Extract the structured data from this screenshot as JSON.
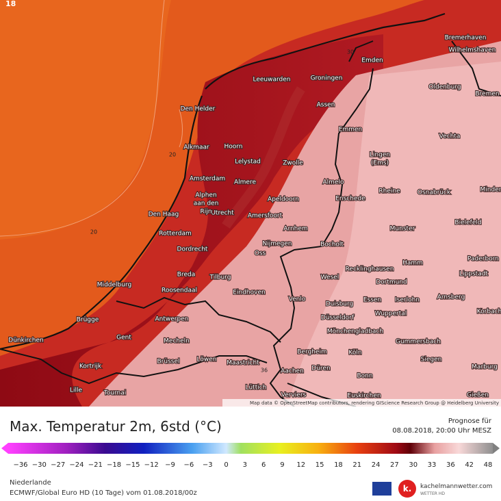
{
  "map": {
    "corner_label": "18",
    "cities": [
      "Bremerhaven",
      "Wilhelmshaven",
      "Emden",
      "Leeuwarden",
      "Groningen",
      "Oldenburg",
      "Bremen",
      "Den Helder",
      "Assen",
      "Emmen",
      "Vechta",
      "Alkmaar",
      "Hoorn",
      "Lelystad",
      "Zwolle",
      "Amsterdam",
      "Almere",
      "Almelo",
      "Rheine",
      "Osnabrück",
      "Minden",
      "Apeldoorn",
      "Enschede",
      "Den Haag",
      "Utrecht",
      "Amersfoort",
      "Bielefeld",
      "Arnhem",
      "Munster",
      "Rotterdam",
      "Nijmegen",
      "Bocholt",
      "Dordrecht",
      "Oss",
      "Hamm",
      "Paderborn",
      "Recklinghausen",
      "Lippstadt",
      "Breda",
      "Tilburg",
      "Wesel",
      "Dortmund",
      "Middelburg",
      "Roosendaal",
      "Arnsberg",
      "Eindhoven",
      "Venlo",
      "Essen",
      "Iserlohn",
      "Duisburg",
      "Korbach",
      "Wuppertal",
      "Düsseldorf",
      "Brügge",
      "Antwerpen",
      "Mönchengladbach",
      "Dünkirchen",
      "Gent",
      "Mecheln",
      "Gummersbach",
      "Bergheim",
      "Köln",
      "Kortrijk",
      "Brüssel",
      "Löwen",
      "Maastricht",
      "Siegen",
      "Düren",
      "Aachen",
      "Marburg",
      "Bonn",
      "Lille",
      "Tournai",
      "Lüttich",
      "Verviers",
      "Euskirchen",
      "Gießen"
    ],
    "multiline_cities": [
      [
        "Alphen",
        "aan den",
        "Rijn"
      ],
      [
        "Lingen",
        "(Ems)"
      ]
    ],
    "contour_labels": [
      "20",
      "20",
      "36",
      "30"
    ],
    "attribution": "Map data © OpenStreetMap contributors, rendering GIScience Research Group @ Heidelberg University"
  },
  "footer": {
    "title": "Max. Temperatur 2m, 6std (°C)",
    "forecast_label": "Prognose für",
    "forecast_time": "08.08.2018, 20:00 Uhr MESZ",
    "legend_ticks": [
      "−36",
      "−30",
      "−27",
      "−24",
      "−21",
      "−18",
      "−15",
      "−12",
      "−9",
      "−6",
      "−3",
      "0",
      "3",
      "6",
      "9",
      "12",
      "15",
      "18",
      "21",
      "24",
      "27",
      "30",
      "33",
      "36",
      "42",
      "48"
    ],
    "region": "Niederlande",
    "model": "ECMWF/Global Euro HD (10 Tage) vom 01.08.2018/00z",
    "brand": "kachelmannwetter.com",
    "brand_sub": "WETTER HD",
    "logo_letter": "k."
  }
}
